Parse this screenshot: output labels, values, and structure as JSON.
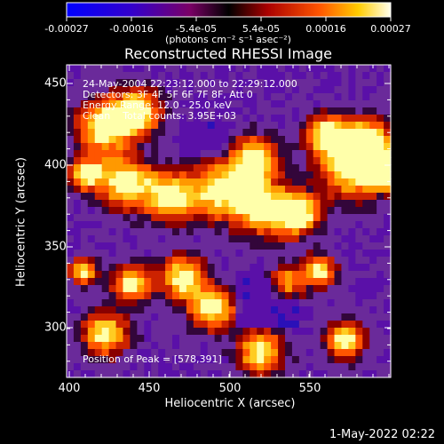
{
  "colorbar": {
    "ticks": [
      "-0.00027",
      "-0.00016",
      "-5.4e-05",
      "5.4e-05",
      "0.00016",
      "0.00027"
    ],
    "unit_label": "(photons cm⁻² s⁻¹ asec⁻²)"
  },
  "plot": {
    "title": "Reconstructed RHESSI Image",
    "xlabel": "Heliocentric X (arcsec)",
    "ylabel": "Heliocentric Y (arcsec)",
    "xticks": [
      "400",
      "450",
      "500",
      "550"
    ],
    "yticks": [
      "450",
      "400",
      "350",
      "300"
    ]
  },
  "annotations": {
    "time_range": "24-May-2004 22:23:12.000 to 22:29:12.000",
    "detectors": "Detectors: 3F 4F 5F 6F 7F 8F, Att 0",
    "energy_range": "Energy Range: 12.0 - 25.0 keV",
    "method_counts": "Clean    Total counts: 3.95E+03",
    "peak": "Position of Peak = [578,391]"
  },
  "footer": {
    "timestamp": "1-May-2022 02:22"
  },
  "chart_data": {
    "type": "heatmap",
    "title": "Reconstructed RHESSI Image",
    "xlabel": "Heliocentric X (arcsec)",
    "ylabel": "Heliocentric Y (arcsec)",
    "xlim": [
      400,
      590
    ],
    "ylim": [
      268,
      462
    ],
    "value_range": [
      -0.00027,
      0.00027
    ],
    "peak": [
      578,
      391
    ]
  }
}
